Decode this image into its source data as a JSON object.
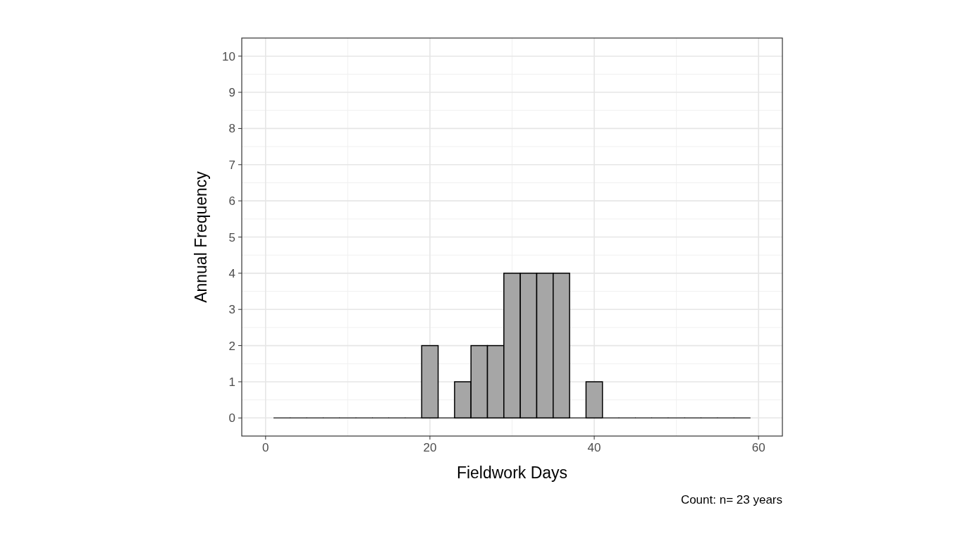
{
  "chart_data": {
    "type": "histogram",
    "xlabel": "Fieldwork Days",
    "ylabel": "Annual Frequency",
    "bins": [
      1,
      3,
      5,
      7,
      9,
      11,
      13,
      15,
      17,
      19,
      21,
      23,
      25,
      27,
      29,
      31,
      33,
      35,
      37,
      39,
      41,
      43,
      45,
      47,
      49,
      51,
      53,
      55,
      57,
      59
    ],
    "values": [
      0,
      0,
      0,
      0,
      0,
      0,
      0,
      0,
      0,
      2,
      0,
      1,
      2,
      2,
      4,
      4,
      4,
      4,
      0,
      1,
      0,
      0,
      0,
      0,
      0,
      0,
      0,
      0,
      0
    ],
    "color": "#a6a6a6",
    "xlim": [
      -2.9,
      62.9
    ],
    "xticks": [
      0,
      20,
      40,
      60
    ],
    "ylim": [
      -0.5,
      10.5
    ],
    "yticks": [
      0,
      1,
      2,
      3,
      4,
      5,
      6,
      7,
      8,
      9,
      10
    ],
    "grid": true,
    "annotations": [
      "Count: n= 23 years"
    ]
  }
}
